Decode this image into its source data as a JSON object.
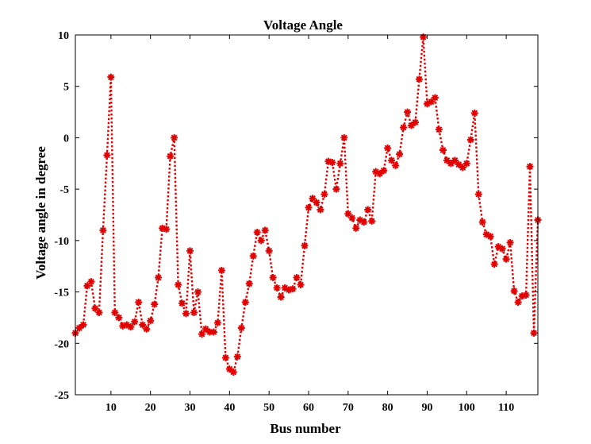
{
  "chart_data": {
    "type": "line",
    "title": "Voltage Angle",
    "xlabel": "Bus number",
    "ylabel": "Voltage angle in degree",
    "xlim": [
      1,
      118
    ],
    "ylim": [
      -25,
      10
    ],
    "xticks": [
      10,
      20,
      30,
      40,
      50,
      60,
      70,
      80,
      90,
      100,
      110
    ],
    "yticks": [
      -25,
      -20,
      -15,
      -10,
      -5,
      0,
      5,
      10
    ],
    "xtick_labels": [
      "10",
      "20",
      "30",
      "40",
      "50",
      "60",
      "70",
      "80",
      "90",
      "100",
      "110"
    ],
    "ytick_labels": [
      "-25",
      "-20",
      "-15",
      "-10",
      "-5",
      "0",
      "5",
      "10"
    ],
    "grid": false,
    "legend": "none",
    "series": [
      {
        "line_style": "dotted",
        "marker": "asterisk",
        "color": "#e00000",
        "x": [
          1,
          2,
          3,
          4,
          5,
          6,
          7,
          8,
          9,
          10,
          11,
          12,
          13,
          14,
          15,
          16,
          17,
          18,
          19,
          20,
          21,
          22,
          23,
          24,
          25,
          26,
          27,
          28,
          29,
          30,
          31,
          32,
          33,
          34,
          35,
          36,
          37,
          38,
          39,
          40,
          41,
          42,
          43,
          44,
          45,
          46,
          47,
          48,
          49,
          50,
          51,
          52,
          53,
          54,
          55,
          56,
          57,
          58,
          59,
          60,
          61,
          62,
          63,
          64,
          65,
          66,
          67,
          68,
          69,
          70,
          71,
          72,
          73,
          74,
          75,
          76,
          77,
          78,
          79,
          80,
          81,
          82,
          83,
          84,
          85,
          86,
          87,
          88,
          89,
          90,
          91,
          92,
          93,
          94,
          95,
          96,
          97,
          98,
          99,
          100,
          101,
          102,
          103,
          104,
          105,
          106,
          107,
          108,
          109,
          110,
          111,
          112,
          113,
          114,
          115,
          116,
          117,
          118
        ],
        "y": [
          -19.0,
          -18.5,
          -18.2,
          -14.4,
          -14.0,
          -16.6,
          -17.0,
          -9.0,
          -1.7,
          5.9,
          -17.0,
          -17.5,
          -18.3,
          -18.2,
          -18.4,
          -17.9,
          -16.0,
          -18.2,
          -18.6,
          -17.8,
          -16.2,
          -13.6,
          -8.8,
          -8.9,
          -1.8,
          0.0,
          -14.3,
          -16.1,
          -17.1,
          -11.0,
          -17.0,
          -15.0,
          -19.1,
          -18.6,
          -18.9,
          -18.9,
          -18.0,
          -12.9,
          -21.4,
          -22.5,
          -22.8,
          -21.3,
          -18.5,
          -16.0,
          -14.2,
          -11.5,
          -9.2,
          -10.0,
          -9.0,
          -11.0,
          -13.6,
          -14.6,
          -15.5,
          -14.6,
          -14.8,
          -14.7,
          -13.6,
          -14.3,
          -10.5,
          -6.8,
          -5.9,
          -6.3,
          -7.0,
          -5.5,
          -2.3,
          -2.4,
          -5.0,
          -2.5,
          0.0,
          -7.4,
          -7.8,
          -8.8,
          -8.0,
          -8.2,
          -7.0,
          -8.1,
          -3.3,
          -3.5,
          -3.2,
          -1.0,
          -2.2,
          -2.7,
          -1.6,
          1.0,
          2.5,
          1.2,
          1.5,
          5.7,
          9.8,
          3.3,
          3.5,
          3.9,
          0.8,
          -1.2,
          -2.2,
          -2.5,
          -2.2,
          -2.6,
          -2.9,
          -2.5,
          -0.2,
          2.4,
          -5.5,
          -8.2,
          -9.4,
          -9.6,
          -12.3,
          -10.6,
          -10.8,
          -11.8,
          -10.2,
          -14.9,
          -16.0,
          -15.4,
          -15.3,
          -2.8,
          -19.0,
          -8.0
        ]
      }
    ]
  }
}
